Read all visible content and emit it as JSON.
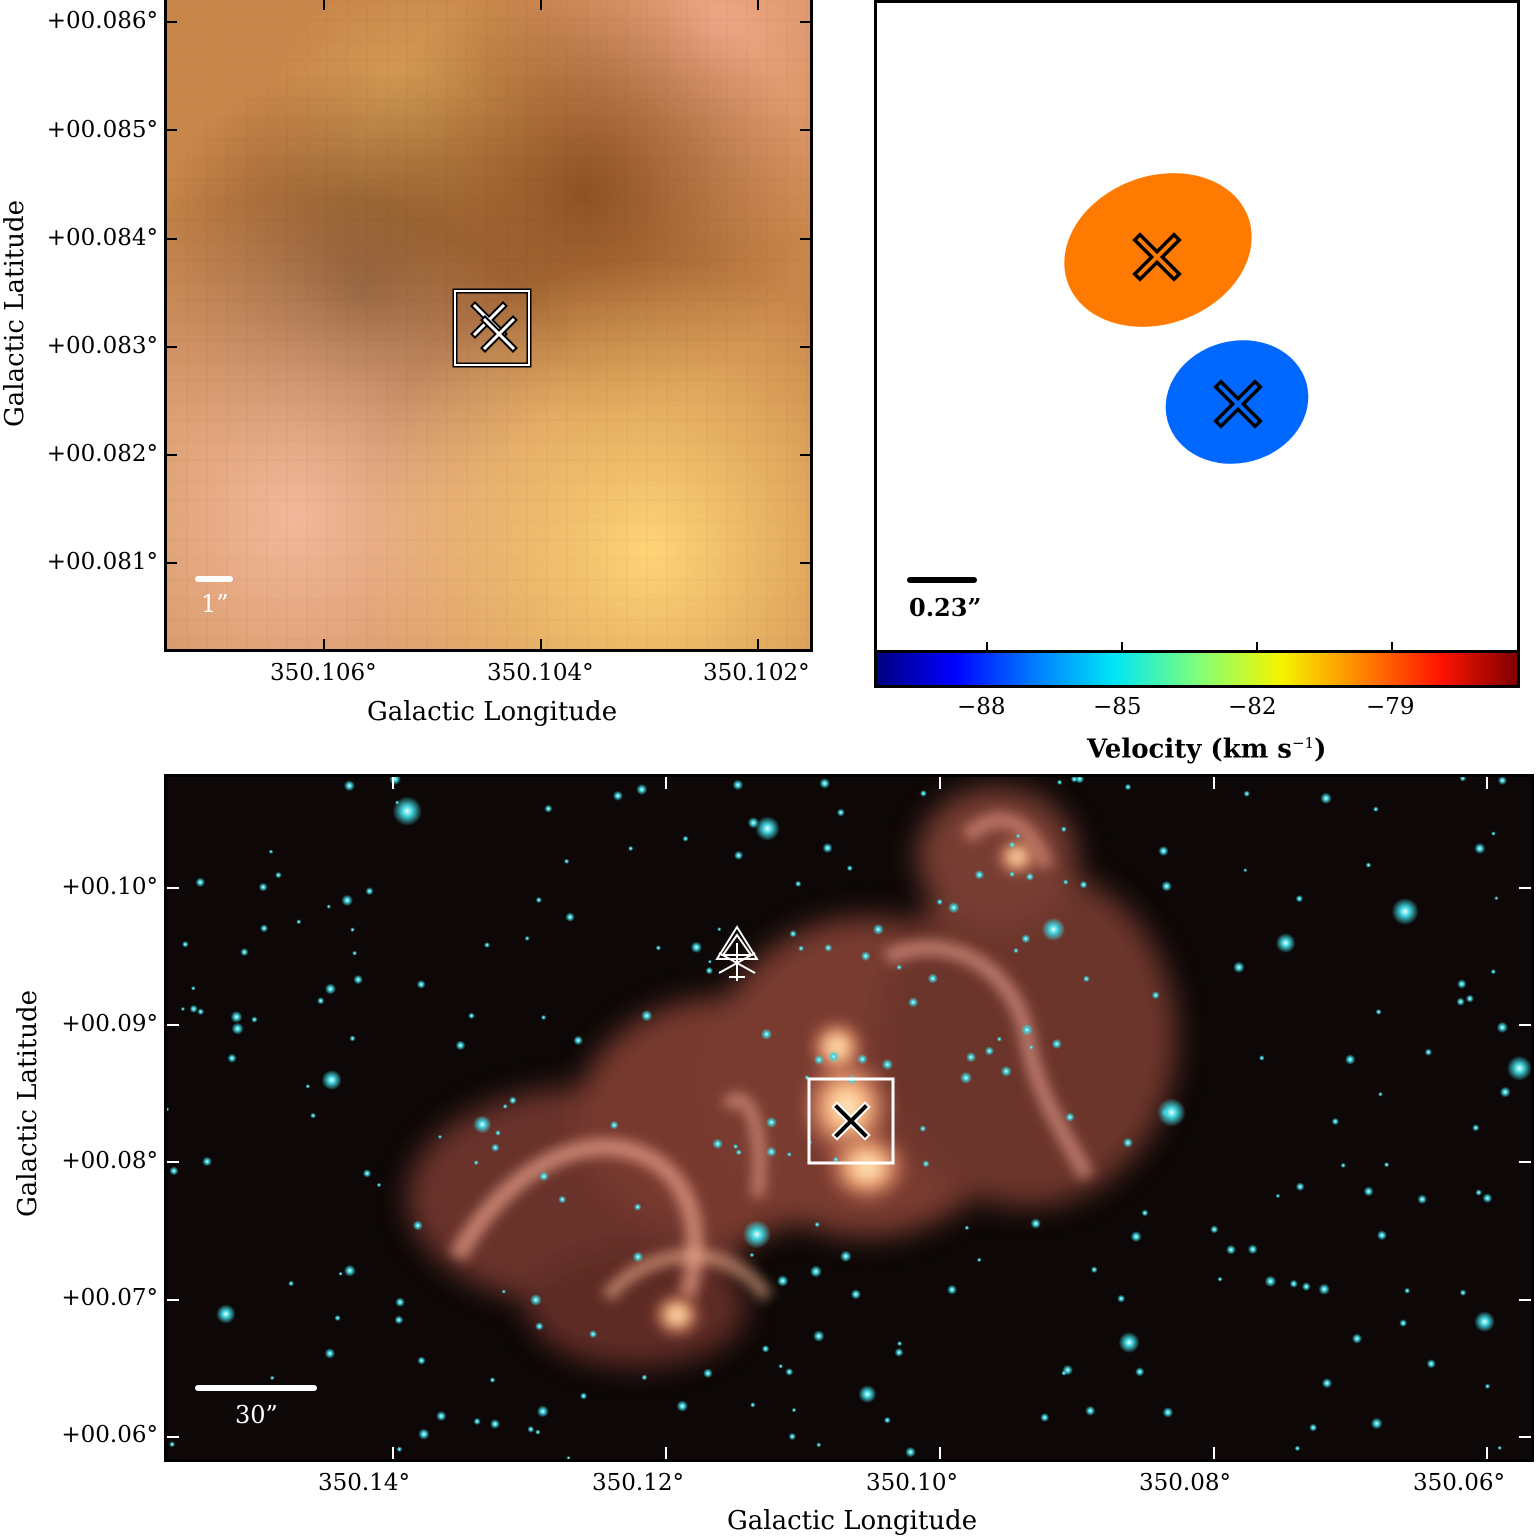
{
  "top_left": {
    "x_axis_title": "Galactic Longitude",
    "y_axis_title": "Galactic Latitude",
    "x_ticks": [
      "350.106°",
      "350.104°",
      "350.102°"
    ],
    "y_ticks": [
      "+00.086°",
      "+00.085°",
      "+00.084°",
      "+00.083°",
      "+00.082°",
      "+00.081°"
    ],
    "scale_label": "1”",
    "marker_icons": [
      "box-icon",
      "cross-icon",
      "cross-icon"
    ]
  },
  "top_right": {
    "scale_label": "0.23”",
    "sources": [
      {
        "color": "#ff7a00",
        "marker": "cross-icon"
      },
      {
        "color": "#0068ff",
        "marker": "cross-icon"
      }
    ],
    "colorbar": {
      "ticks": [
        "−88",
        "−85",
        "−82",
        "−79"
      ],
      "title_main": "Velocity (km s",
      "title_sup": "−1",
      "title_end": ")"
    }
  },
  "bottom": {
    "x_axis_title": "Galactic Longitude",
    "y_axis_title": "Galactic Latitude",
    "x_ticks": [
      "350.14°",
      "350.12°",
      "350.10°",
      "350.08°",
      "350.06°"
    ],
    "y_ticks": [
      "+00.10°",
      "+00.09°",
      "+00.08°",
      "+00.07°",
      "+00.06°"
    ],
    "scale_label": "30”",
    "marker_icons": [
      "box-icon",
      "cross-icon",
      "triangle-asterisk-icon"
    ]
  }
}
